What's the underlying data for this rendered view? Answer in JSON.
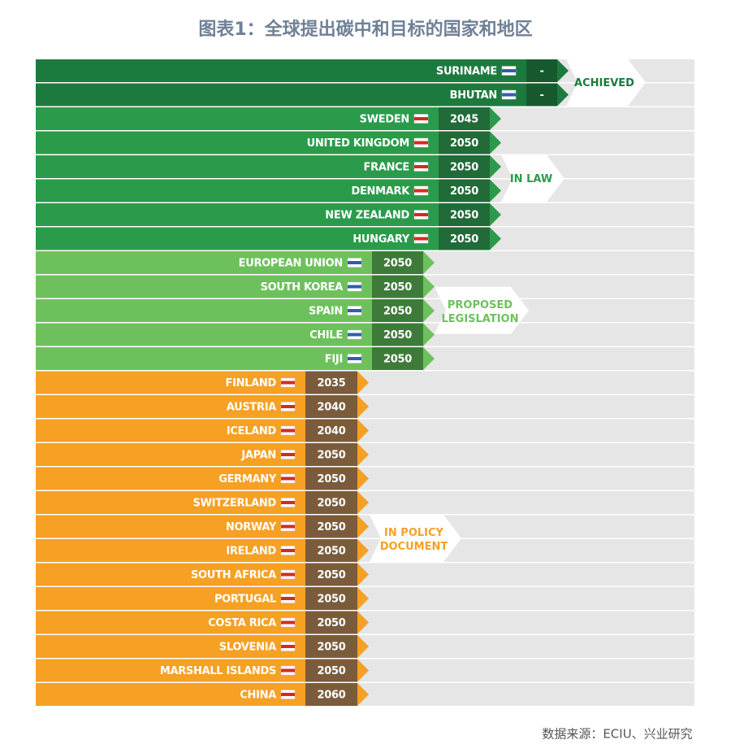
{
  "title": "图表1：全球提出碳中和目标的国家和地区",
  "groups": [
    {
      "label": "ACHIEVED",
      "rows": [
        {
          "country": "SURINAME",
          "year": "-"
        },
        {
          "country": "BHUTAN",
          "year": "-"
        }
      ]
    },
    {
      "label": "IN LAW",
      "rows": [
        {
          "country": "SWEDEN",
          "year": 2045
        },
        {
          "country": "UNITED KINGDOM",
          "year": 2050
        },
        {
          "country": "FRANCE",
          "year": 2050
        },
        {
          "country": "DENMARK",
          "year": 2050
        },
        {
          "country": "NEW ZEALAND",
          "year": 2050
        },
        {
          "country": "HUNGARY",
          "year": 2050
        }
      ]
    },
    {
      "label": "PROPOSED LEGISLATION",
      "rows": [
        {
          "country": "EUROPEAN UNION",
          "year": 2050
        },
        {
          "country": "SOUTH KOREA",
          "year": 2050
        },
        {
          "country": "SPAIN",
          "year": 2050
        },
        {
          "country": "CHILE",
          "year": 2050
        },
        {
          "country": "FIJI",
          "year": 2050
        }
      ]
    },
    {
      "label": "IN POLICY DOCUMENT",
      "rows": [
        {
          "country": "FINLAND",
          "year": 2035
        },
        {
          "country": "AUSTRIA",
          "year": 2040
        },
        {
          "country": "ICELAND",
          "year": 2040
        },
        {
          "country": "JAPAN",
          "year": 2050
        },
        {
          "country": "GERMANY",
          "year": 2050
        },
        {
          "country": "SWITZERLAND",
          "year": 2050
        },
        {
          "country": "NORWAY",
          "year": 2050
        },
        {
          "country": "IRELAND",
          "year": 2050
        },
        {
          "country": "SOUTH AFRICA",
          "year": 2050
        },
        {
          "country": "PORTUGAL",
          "year": 2050
        },
        {
          "country": "COSTA RICA",
          "year": 2050
        },
        {
          "country": "SLOVENIA",
          "year": 2050
        },
        {
          "country": "MARSHALL ISLANDS",
          "year": 2050
        },
        {
          "country": "CHINA",
          "year": 2060
        }
      ]
    }
  ],
  "source": "数据来源：ECIU、兴业研究"
}
